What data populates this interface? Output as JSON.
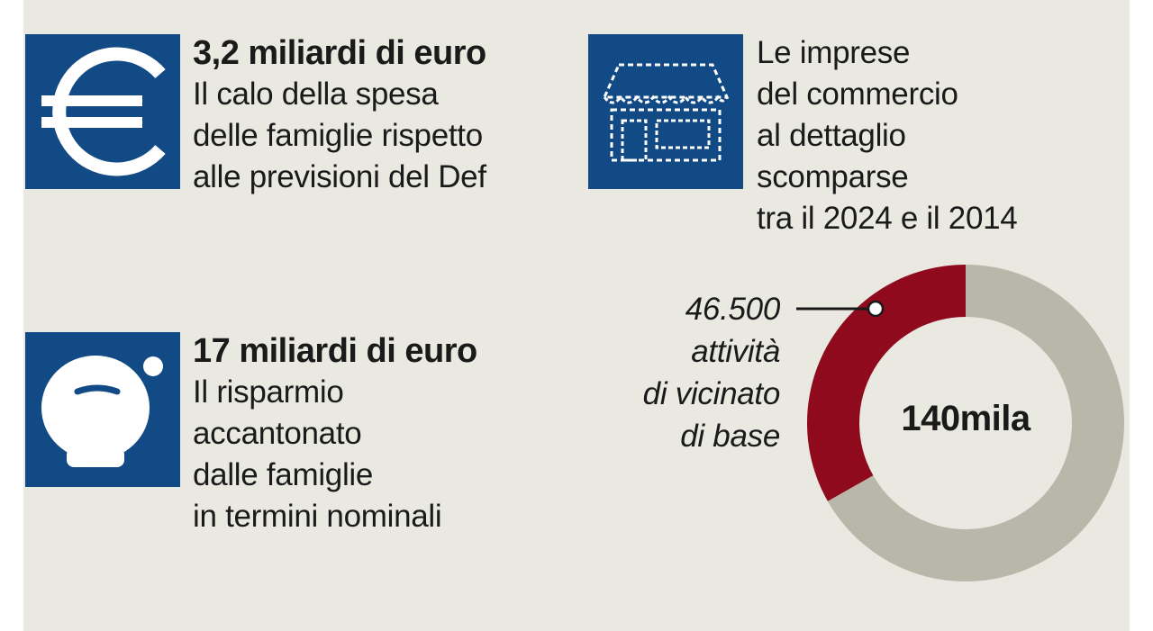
{
  "colors": {
    "panel_bg": "#e9e8e1",
    "icon_bg": "#124a85",
    "donut_highlight": "#8e0a1c",
    "donut_rest": "#b8b7a9",
    "text": "#1a1a1a"
  },
  "stats": [
    {
      "icon": "euro-icon",
      "headline": "3,2 miliardi di euro",
      "lines": [
        "Il calo della spesa",
        "delle famiglie rispetto",
        "alle previsioni del Def"
      ]
    },
    {
      "icon": "piggy-bank-icon",
      "headline": "17 miliardi di euro",
      "lines": [
        "Il risparmio",
        "accantonato",
        "dalle famiglie",
        "in termini nominali"
      ]
    },
    {
      "icon": "shop-icon",
      "headline": "",
      "lines": [
        "Le imprese",
        "del commercio",
        "al dettaglio",
        "scomparse",
        "tra il 2024 e il 2014"
      ]
    }
  ],
  "chart_data": {
    "type": "pie",
    "donut": true,
    "center_label": "140mila",
    "total": 140000,
    "slices": [
      {
        "label": "attività di vicinato di base",
        "value": 46500,
        "color": "#8e0a1c"
      },
      {
        "label": "",
        "value": 93500,
        "color": "#b8b7a9"
      }
    ],
    "annotation": {
      "value_text": "46.500",
      "lines": [
        "attività",
        "di vicinato",
        "di base"
      ]
    }
  }
}
